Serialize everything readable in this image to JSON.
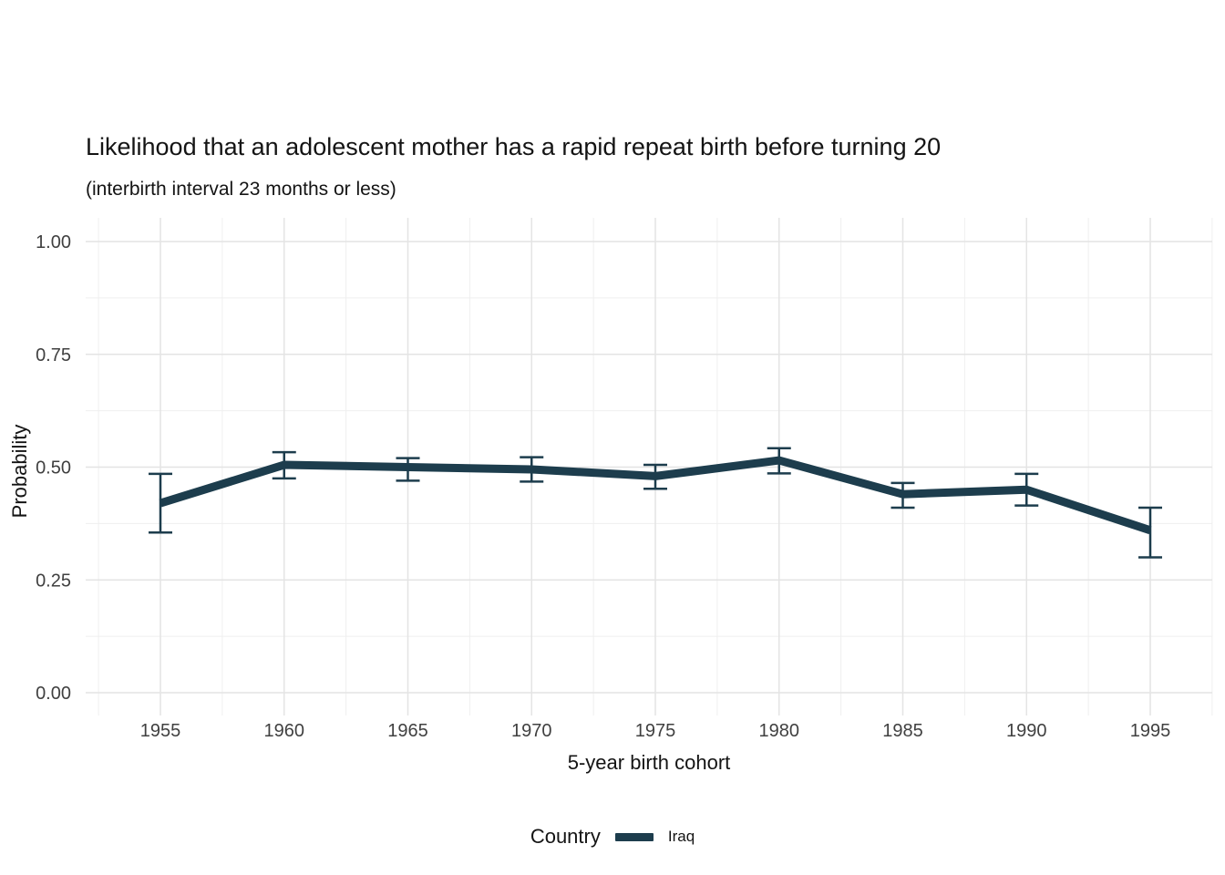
{
  "chart_data": {
    "type": "line",
    "title": "Likelihood that an adolescent mother has a rapid repeat birth before turning 20",
    "subtitle": "(interbirth interval 23 months or less)",
    "xlabel": "5-year birth cohort",
    "ylabel": "Probability",
    "legend_title": "Country",
    "legend_position": "bottom",
    "grid": true,
    "ylim": [
      0,
      1
    ],
    "x_ticks": [
      1955,
      1960,
      1965,
      1970,
      1975,
      1980,
      1985,
      1990,
      1995
    ],
    "x_tick_labels": [
      "1955",
      "1960",
      "1965",
      "1970",
      "1975",
      "1980",
      "1985",
      "1990",
      "1995"
    ],
    "y_ticks": [
      0,
      0.25,
      0.5,
      0.75,
      1
    ],
    "y_tick_labels": [
      "0.00",
      "0.25",
      "0.50",
      "0.75",
      "1.00"
    ],
    "series": [
      {
        "name": "Iraq",
        "color": "#1d3d4d",
        "x": [
          1955,
          1960,
          1965,
          1970,
          1975,
          1980,
          1985,
          1990,
          1995
        ],
        "y": [
          0.42,
          0.505,
          0.5,
          0.495,
          0.48,
          0.515,
          0.44,
          0.45,
          0.36
        ],
        "ymin": [
          0.355,
          0.475,
          0.47,
          0.468,
          0.452,
          0.486,
          0.41,
          0.415,
          0.3
        ],
        "ymax": [
          0.485,
          0.533,
          0.52,
          0.522,
          0.505,
          0.542,
          0.465,
          0.485,
          0.41
        ]
      }
    ]
  }
}
